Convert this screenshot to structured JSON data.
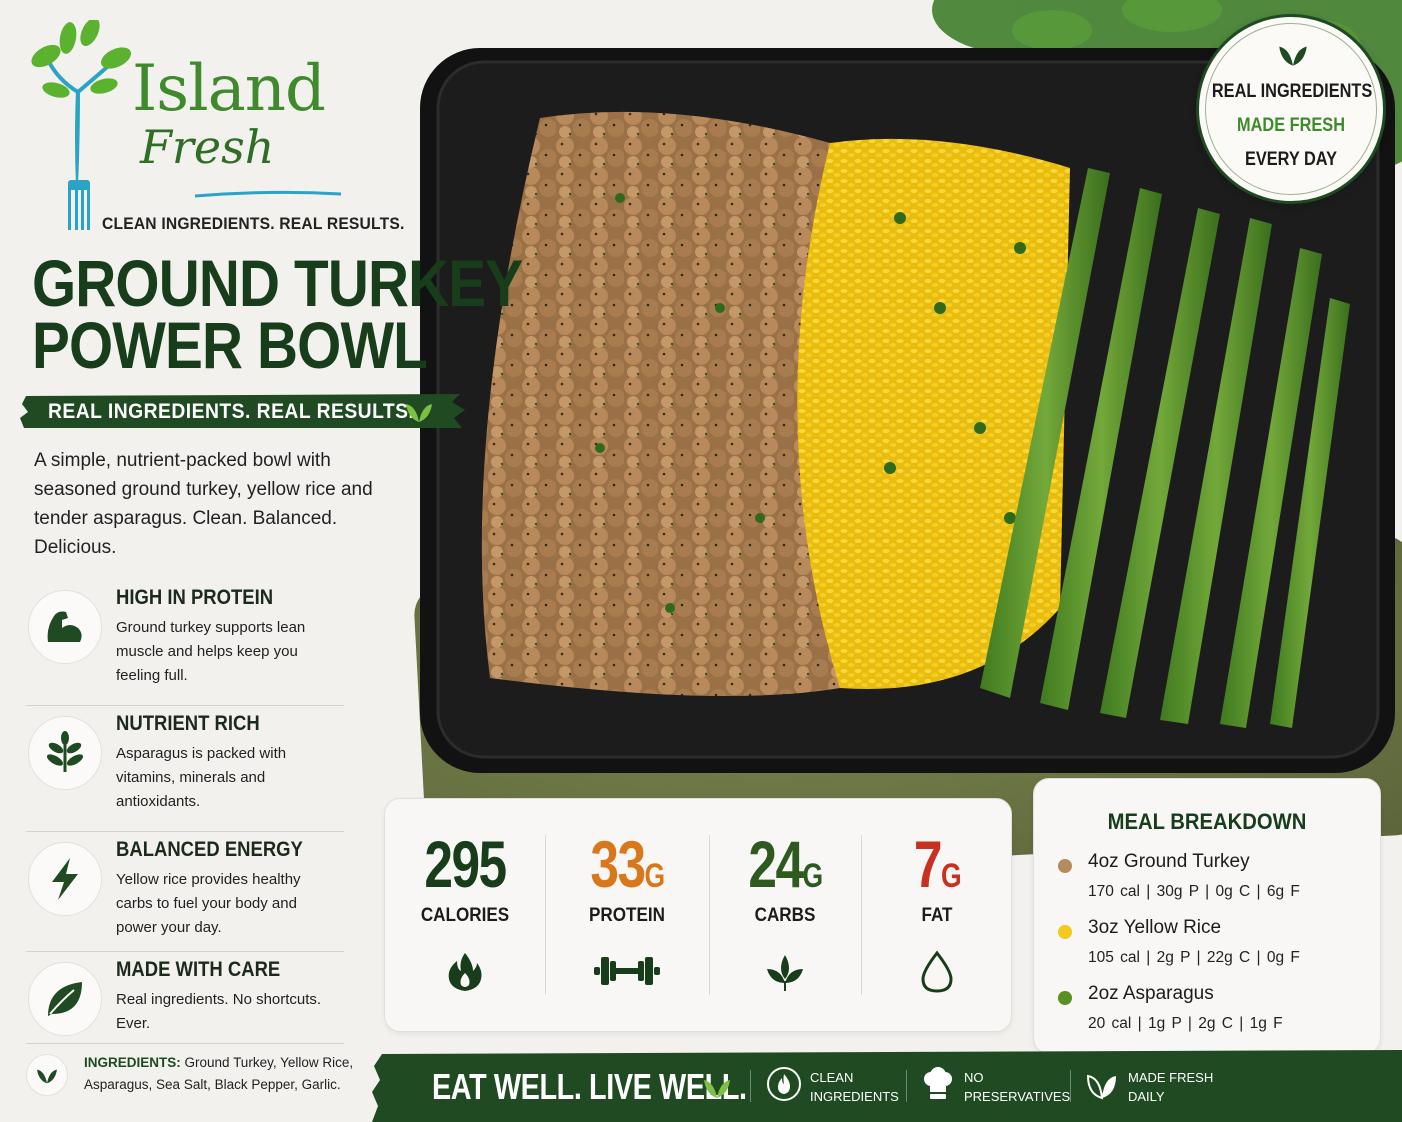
{
  "brand": {
    "name_top": "Island",
    "name_bottom": "Fresh",
    "tagline": "CLEAN INGREDIENTS. REAL RESULTS."
  },
  "product": {
    "title_line1": "GROUND TURKEY",
    "title_line2": "POWER BOWL",
    "ribbon": "REAL INGREDIENTS. REAL RESULTS.",
    "description": "A simple, nutrient-packed bowl with seasoned ground turkey, yellow rice and tender asparagus. Clean. Balanced. Delicious."
  },
  "features": [
    {
      "title": "HIGH IN PROTEIN",
      "text": "Ground turkey supports lean muscle and helps keep you feeling full.",
      "icon": "muscle-icon"
    },
    {
      "title": "NUTRIENT RICH",
      "text": "Asparagus is packed with vitamins, minerals and antioxidants.",
      "icon": "sprout-icon"
    },
    {
      "title": "BALANCED ENERGY",
      "text": "Yellow rice provides healthy carbs to fuel your body and power your day.",
      "icon": "lightning-icon"
    },
    {
      "title": "MADE WITH CARE",
      "text": "Real ingredients. No shortcuts. Ever.",
      "icon": "leaf-icon"
    }
  ],
  "ingredients": {
    "label": "INGREDIENTS:",
    "list": "Ground Turkey, Yellow Rice, Asparagus, Sea Salt, Black Pepper, Garlic."
  },
  "nutrition": [
    {
      "value": "295",
      "unit": "",
      "label": "CALORIES",
      "color": "#173d1a",
      "icon": "flame-icon"
    },
    {
      "value": "33",
      "unit": "G",
      "label": "PROTEIN",
      "color": "#d9771c",
      "icon": "dumbbell-icon"
    },
    {
      "value": "24",
      "unit": "G",
      "label": "CARBS",
      "color": "#2d5a1f",
      "icon": "leaves-icon"
    },
    {
      "value": "7",
      "unit": "G",
      "label": "FAT",
      "color": "#c7311f",
      "icon": "drop-icon"
    }
  ],
  "breakdown": {
    "title": "MEAL BREAKDOWN",
    "items": [
      {
        "name": "4oz Ground Turkey",
        "macros": "170 cal  |  30g P  |  0g C  |  6g F",
        "color": "#b58a5c"
      },
      {
        "name": "3oz Yellow Rice",
        "macros": "105 cal  |  2g P  |  22g C  |  0g F",
        "color": "#f2c91c"
      },
      {
        "name": "2oz Asparagus",
        "macros": "20 cal  |  1g P  |  2g C  |  1g F",
        "color": "#5a8f23"
      }
    ]
  },
  "badge": {
    "line1": "REAL INGREDIENTS",
    "line2": "MADE FRESH",
    "line3": "EVERY DAY"
  },
  "banner": {
    "slogan": "EAT WELL. LIVE WELL.",
    "items": [
      {
        "line1": "CLEAN",
        "line2": "INGREDIENTS",
        "icon": "flame-circle-icon"
      },
      {
        "line1": "NO",
        "line2": "PRESERVATIVES",
        "icon": "chef-hat-icon"
      },
      {
        "line1": "MADE FRESH",
        "line2": "DAILY",
        "icon": "leaf-icon"
      }
    ]
  }
}
